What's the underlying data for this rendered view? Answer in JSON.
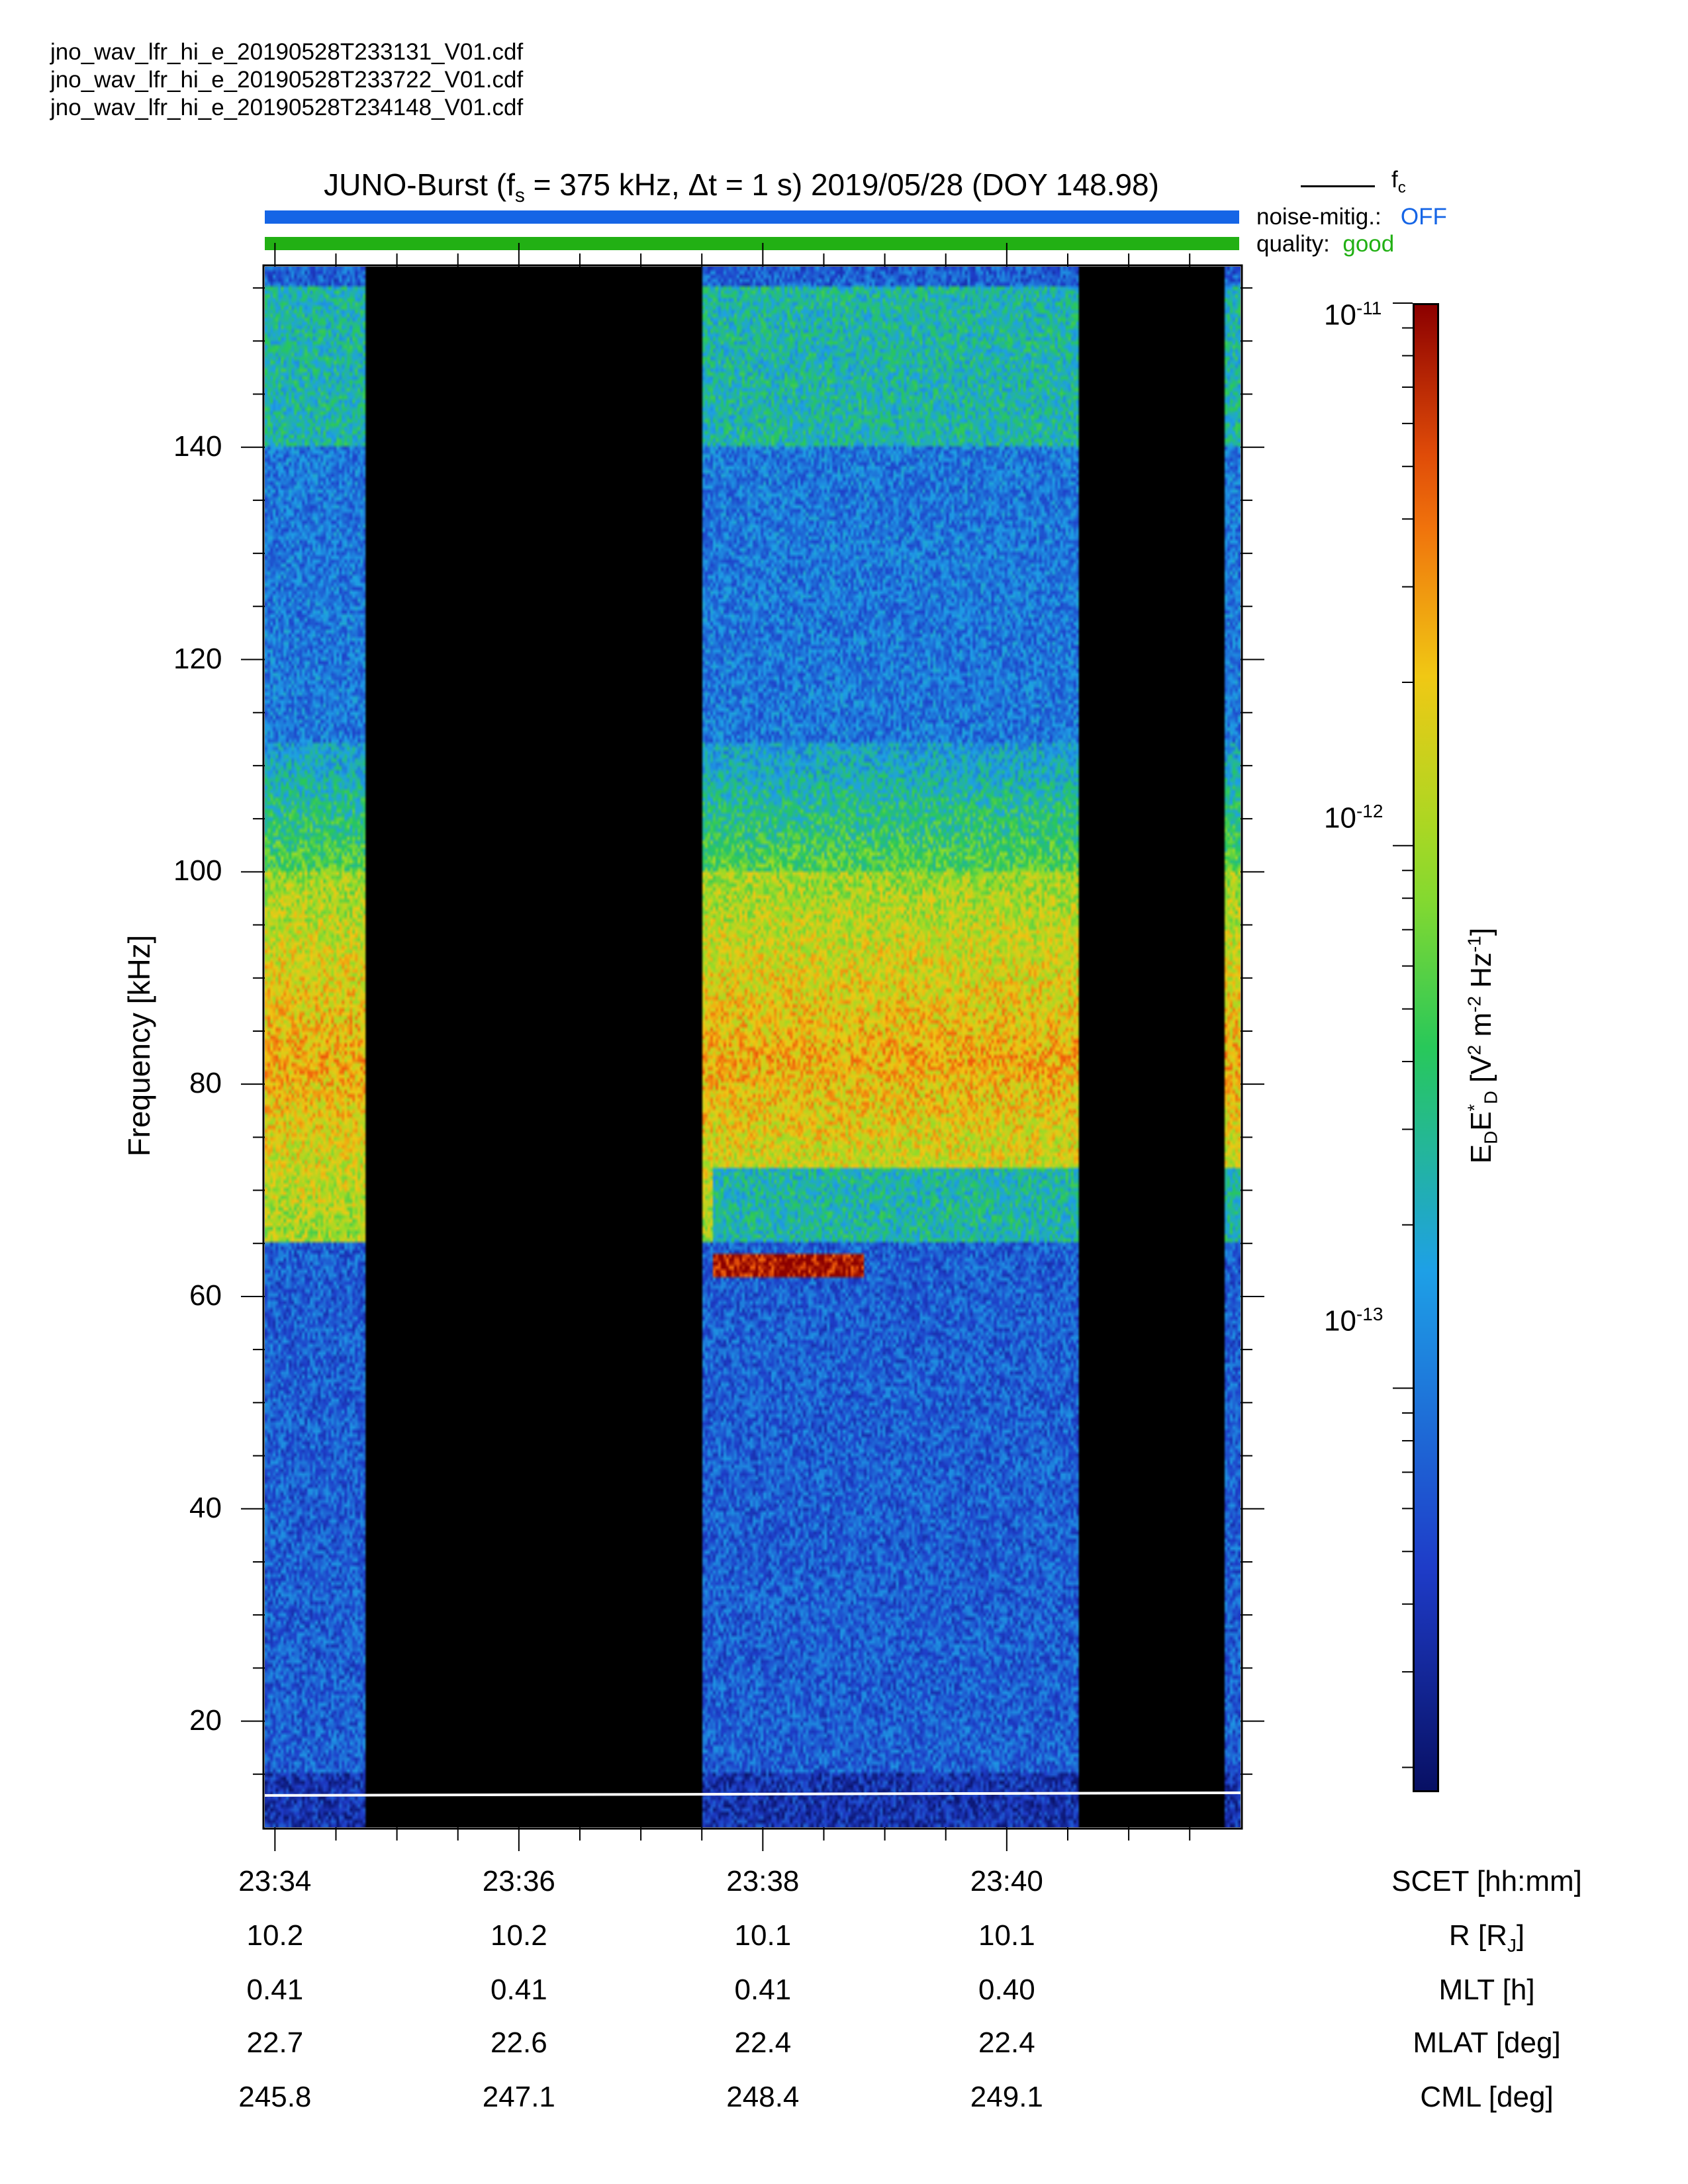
{
  "files": [
    "jno_wav_lfr_hi_e_20190528T233131_V01.cdf",
    "jno_wav_lfr_hi_e_20190528T233722_V01.cdf",
    "jno_wav_lfr_hi_e_20190528T234148_V01.cdf"
  ],
  "title": {
    "prefix": "JUNO-Burst (f",
    "sub": "s",
    "suffix": " = 375 kHz, Δt = 1 s)  2019/05/28 (DOY 148.98)"
  },
  "legend": {
    "fc_main": "f",
    "fc_sub": "c",
    "noise_label": "noise-mitig.:",
    "noise_value": "OFF",
    "quality_label": "quality:",
    "quality_value": "good"
  },
  "colors": {
    "noise_bar": "#1565e6",
    "quality_bar": "#22b014",
    "noise_text": "#1565e6",
    "quality_text": "#22b014"
  },
  "chart_data": {
    "type": "heatmap",
    "ylabel": "Frequency [kHz]",
    "ylim": [
      10,
      157
    ],
    "yticks": [
      20,
      40,
      60,
      80,
      100,
      120,
      140
    ],
    "xlim": [
      "23:33:55",
      "23:41:55"
    ],
    "xticks": [
      "23:34",
      "23:36",
      "23:38",
      "23:40"
    ],
    "data_intervals": [
      [
        "23:33:55",
        "23:34:45"
      ],
      [
        "23:37:30",
        "23:40:35"
      ],
      [
        "23:41:47",
        "23:41:55"
      ]
    ],
    "features": {
      "intense_band_khz": [
        65,
        100
      ],
      "bright_line_khz": 63,
      "bright_line_time": [
        "23:37:35",
        "23:38:50"
      ],
      "fc_khz": 13
    },
    "colorbar": {
      "label_main": "E",
      "label_sub1": "D",
      "label_mid": "E",
      "label_sup": "*",
      "label_sub2": "D",
      "label_units_pre": "  [V",
      "label_sup2": "2",
      "label_units_mid": " m",
      "label_sup3": "-2",
      "label_units_mid2": " Hz",
      "label_sup4": "-1",
      "label_units_end": "]",
      "scale": "log",
      "range": [
        1.8e-14,
        1e-11
      ],
      "ticks": [
        {
          "base": "10",
          "exp": "-11"
        },
        {
          "base": "10",
          "exp": "-12"
        },
        {
          "base": "10",
          "exp": "-13"
        }
      ]
    },
    "ephemeris": {
      "rows": [
        {
          "name": "SCET [hh:mm]",
          "values": [
            "23:34",
            "23:36",
            "23:38",
            "23:40"
          ]
        },
        {
          "name": "R [R",
          "sub": "J",
          "name_end": "]",
          "values": [
            "10.2",
            "10.2",
            "10.1",
            "10.1"
          ]
        },
        {
          "name": "MLT [h]",
          "values": [
            "0.41",
            "0.41",
            "0.41",
            "0.40"
          ]
        },
        {
          "name": "MLAT [deg]",
          "values": [
            "22.7",
            "22.6",
            "22.4",
            "22.4"
          ]
        },
        {
          "name": "CML [deg]",
          "values": [
            "245.8",
            "247.1",
            "248.4",
            "249.1"
          ]
        }
      ]
    }
  }
}
